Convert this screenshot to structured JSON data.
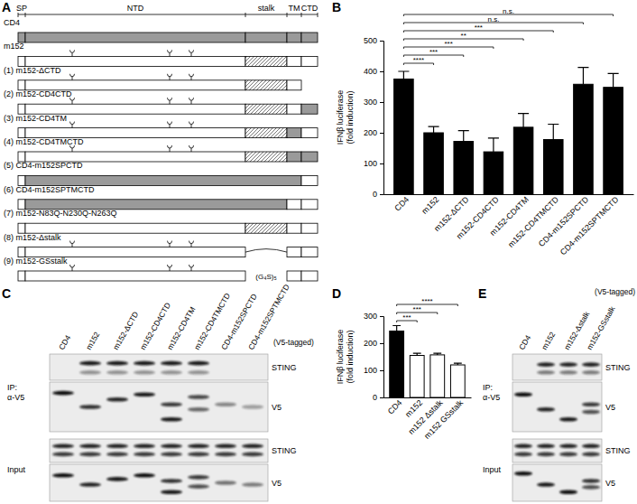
{
  "chart_data": [
    {
      "type": "bar",
      "title": "B",
      "y_label": [
        "IFNβ luciferase",
        "(fold induction)"
      ],
      "categories": [
        "CD4",
        "m152",
        "m152-ΔCTD",
        "m152-CD4CTD",
        "m152-CD4TM",
        "m152-CD4TMCTD",
        "CD4-m152SPCTD",
        "CD4-m152SPTMCTD"
      ],
      "values": [
        375,
        200,
        172,
        138,
        218,
        178,
        358,
        348
      ],
      "errors": [
        25,
        20,
        35,
        45,
        45,
        50,
        55,
        45
      ],
      "color": "#000000",
      "ylim": [
        0,
        500
      ],
      "yticks": [
        0,
        100,
        200,
        300,
        400,
        500
      ],
      "significance": [
        {
          "pair": [
            "CD4",
            "m152"
          ],
          "label": "****"
        },
        {
          "pair": [
            "CD4",
            "m152-ΔCTD"
          ],
          "label": "***"
        },
        {
          "pair": [
            "CD4",
            "m152-CD4CTD"
          ],
          "label": "***"
        },
        {
          "pair": [
            "CD4",
            "m152-CD4TM"
          ],
          "label": "**"
        },
        {
          "pair": [
            "CD4",
            "m152-CD4TMCTD"
          ],
          "label": "***"
        },
        {
          "pair": [
            "CD4",
            "CD4-m152SPCTD"
          ],
          "label": "n.s."
        },
        {
          "pair": [
            "CD4",
            "CD4-m152SPTMCTD"
          ],
          "label": "n.s."
        }
      ]
    },
    {
      "type": "bar",
      "title": "D",
      "y_label": [
        "IFNβ luciferase",
        "(fold induction)"
      ],
      "categories": [
        "CD4",
        "m152",
        "m152 Δstalk",
        "m152 GSstalk"
      ],
      "values": [
        245,
        155,
        157,
        120
      ],
      "errors": [
        20,
        8,
        6,
        6
      ],
      "colors": [
        "#000000",
        "#ffffff",
        "#ffffff",
        "#ffffff"
      ],
      "ylim": [
        0,
        300
      ],
      "yticks": [
        0,
        100,
        200,
        300
      ],
      "significance": [
        {
          "pair": [
            "CD4",
            "m152"
          ],
          "label": "***"
        },
        {
          "pair": [
            "CD4",
            "m152 Δstalk"
          ],
          "label": "***"
        },
        {
          "pair": [
            "CD4",
            "m152 GSstalk"
          ],
          "label": "****"
        }
      ]
    }
  ],
  "panel_a": {
    "title": "A",
    "header": [
      "SP",
      "NTD",
      "stalk",
      "TM",
      "CTD"
    ],
    "constructs": [
      "CD4",
      "m152",
      "(1) m152-ΔCTD",
      "(2) m152-CD4CTD",
      "(3) m152-CD4TM",
      "(4) m152-CD4TMCTD",
      "(5) CD4-m152SPCTD",
      "(6) CD4-m152SPTMCTD",
      "(7) m152-N83Q-N230Q-N263Q",
      "(8) m152-Δstalk",
      "(9) m152-GSstalk"
    ],
    "linker": "(G₄S)₅"
  },
  "panel_c": {
    "title": "C",
    "tag": "(V5-tagged)",
    "lanes": [
      "CD4",
      "m152",
      "m152-ΔCTD",
      "m152-CD4CTD",
      "m152-CD4TM",
      "m152-CD4TMCTD",
      "CD4-m152SPCTD",
      "CD4-m152SPTMCTD"
    ],
    "ip_label": [
      "IP:",
      "α-V5"
    ],
    "input_label": "Input",
    "blots": [
      "STING",
      "V5",
      "STING",
      "V5"
    ]
  },
  "panel_e": {
    "title": "E",
    "tag": "(V5-tagged)",
    "lanes": [
      "CD4",
      "m152",
      "m152-Δstalk",
      "m152-GSstalk"
    ],
    "ip_label": [
      "IP:",
      "α-V5"
    ],
    "input_label": "Input",
    "blots": [
      "STING",
      "V5",
      "STING",
      "V5"
    ]
  }
}
